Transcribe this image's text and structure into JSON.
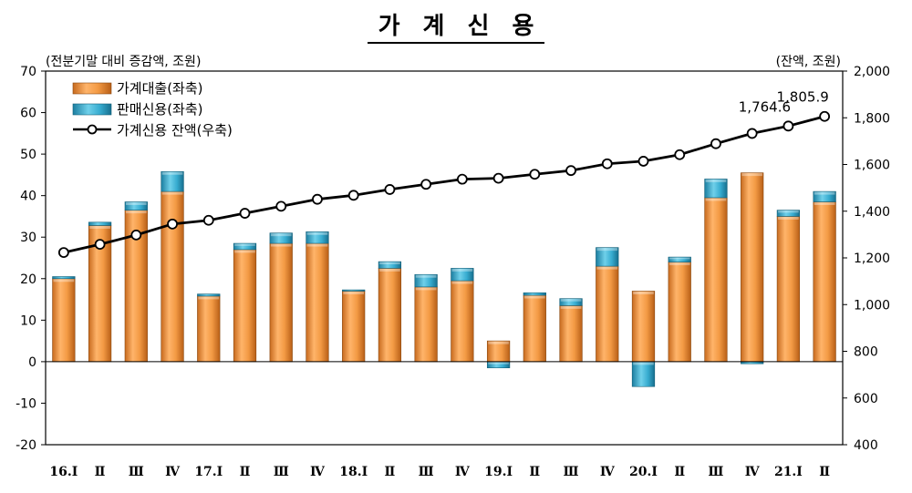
{
  "chart_data": {
    "type": "bar",
    "title": "가 계 신 용",
    "left_unit": "(전분기말 대비 증감액, 조원)",
    "right_unit": "(잔액, 조원)",
    "categories": [
      "16.Ⅰ",
      "Ⅱ",
      "Ⅲ",
      "Ⅳ",
      "17.Ⅰ",
      "Ⅱ",
      "Ⅲ",
      "Ⅳ",
      "18.Ⅰ",
      "Ⅱ",
      "Ⅲ",
      "Ⅳ",
      "19.Ⅰ",
      "Ⅱ",
      "Ⅲ",
      "Ⅳ",
      "20.Ⅰ",
      "Ⅱ",
      "Ⅲ",
      "Ⅳ",
      "21.Ⅰ",
      "Ⅱ"
    ],
    "left_axis": {
      "min": -20,
      "max": 70,
      "step": 10,
      "ticks": [
        "-20",
        "-10",
        "0",
        "10",
        "20",
        "30",
        "40",
        "50",
        "60",
        "70"
      ]
    },
    "right_axis": {
      "min": 400,
      "max": 2000,
      "step": 200,
      "ticks": [
        "400",
        "600",
        "800",
        "1,000",
        "1,200",
        "1,400",
        "1,600",
        "1,800",
        "2,000"
      ]
    },
    "series": [
      {
        "name": "가계대출(좌축)",
        "axis": "left",
        "stack": true,
        "color": "#f0963a",
        "values": [
          20.0,
          32.8,
          36.5,
          41.0,
          15.8,
          27.0,
          28.5,
          28.5,
          17.0,
          22.5,
          18.0,
          19.5,
          5.0,
          16.0,
          13.5,
          23.0,
          17.0,
          24.0,
          39.5,
          45.5,
          35.0,
          38.5
        ]
      },
      {
        "name": "판매신용(좌축)",
        "axis": "left",
        "stack": true,
        "color": "#3aaecf",
        "values": [
          0.5,
          0.8,
          2.0,
          4.8,
          0.5,
          1.5,
          2.5,
          2.8,
          0.3,
          1.6,
          3.0,
          3.0,
          -1.5,
          0.6,
          1.7,
          4.5,
          -6.0,
          1.2,
          4.5,
          -0.5,
          1.5,
          2.5
        ]
      },
      {
        "name": "가계신용 잔액(우축)",
        "axis": "right",
        "type": "line",
        "color": "#000000",
        "values": [
          1223,
          1258,
          1298,
          1345,
          1361,
          1391,
          1421,
          1451,
          1468,
          1493,
          1515,
          1537,
          1541,
          1558,
          1574,
          1603,
          1614,
          1642,
          1689,
          1733,
          1764.6,
          1805.9
        ]
      }
    ],
    "annotations": [
      {
        "index": 20,
        "text": "1,764.6"
      },
      {
        "index": 21,
        "text": "1,805.9"
      }
    ],
    "legend": "top-left",
    "grid": false
  }
}
